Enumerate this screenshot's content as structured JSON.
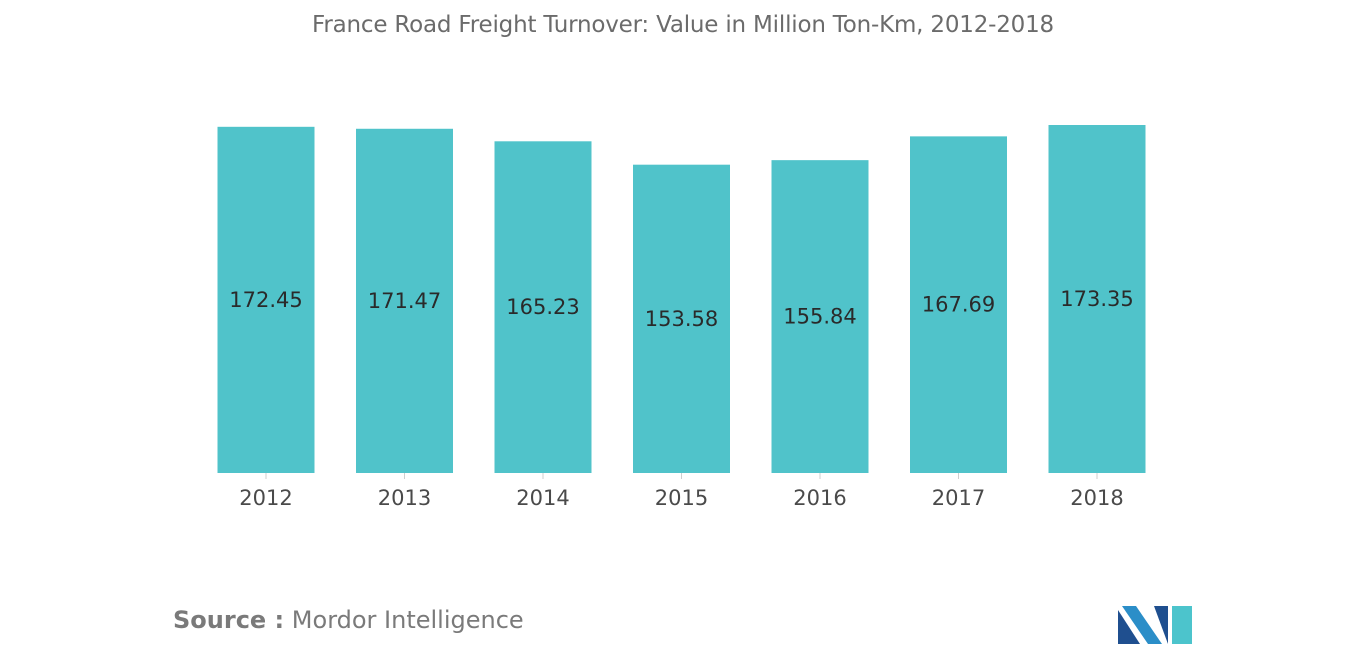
{
  "chart_data": {
    "type": "bar",
    "title": "France Road Freight Turnover: Value in Million Ton-Km, 2012-2018",
    "categories": [
      "2012",
      "2013",
      "2014",
      "2015",
      "2016",
      "2017",
      "2018"
    ],
    "values": [
      172.45,
      171.47,
      165.23,
      153.58,
      155.84,
      167.69,
      173.35
    ],
    "data_labels": [
      "172.45",
      "171.47",
      "165.23",
      "153.58",
      "155.84",
      "167.69",
      "173.35"
    ],
    "xlabel": "",
    "ylabel": "",
    "ylim": [
      0,
      173.35
    ],
    "y_axis_visible": false,
    "grid": false,
    "legend": "none",
    "colors": {
      "bar": "#50c3ca"
    }
  },
  "footer": {
    "source_prefix": "Source :",
    "source_name": "Mordor Intelligence"
  },
  "logo": {
    "icon": "mordor-intelligence-logo-icon",
    "colors": [
      "#1f4f8f",
      "#2b8ec8",
      "#4cc4cc"
    ]
  }
}
